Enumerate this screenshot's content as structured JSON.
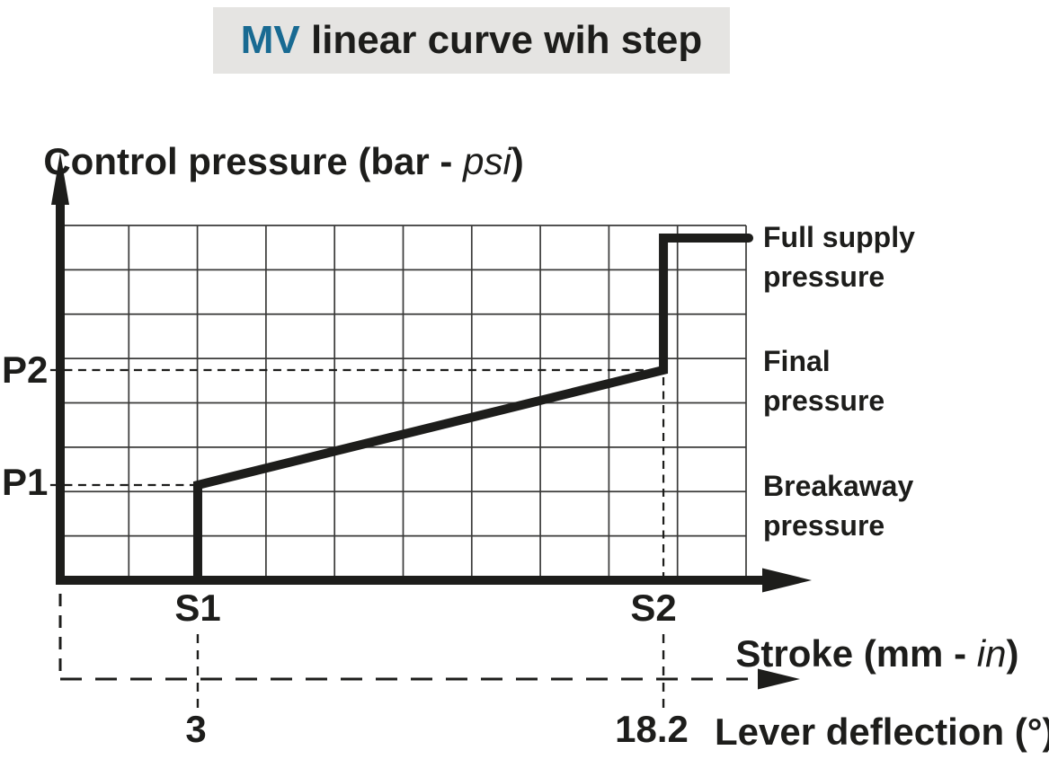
{
  "title": {
    "brand": "MV",
    "rest": " linear curve wih step"
  },
  "y_axis_label": {
    "prefix": "Control pressure (bar - ",
    "italic_unit": "psi",
    "suffix": ")"
  },
  "x_axis_label": {
    "prefix": "Stroke (mm - ",
    "italic_unit": "in",
    "suffix": ")"
  },
  "x2_axis_label": "Lever deflection (°)",
  "ticks": {
    "p2": "P2",
    "p1": "P1",
    "s1": "S1",
    "s2": "S2",
    "v1": "3",
    "v2": "18.2"
  },
  "annotations": {
    "full_supply": "Full supply pressure",
    "final": "Final pressure",
    "breakaway": "Breakaway pressure"
  },
  "colors": {
    "brand_blue": "#186a92",
    "ink": "#1d1d1b",
    "title_bg": "#e5e4e2",
    "grid": "#3a3a39"
  },
  "chart_data": {
    "type": "line",
    "title": "MV linear curve wih step",
    "xlabel": "Stroke (mm - in)",
    "ylabel": "Control pressure (bar - psi)",
    "x2label": "Lever deflection (°)",
    "grid": {
      "cols": 10,
      "rows": 8,
      "visible": true
    },
    "x_ticks": [
      {
        "label": "S1",
        "lever_deflection_deg": 3
      },
      {
        "label": "S2",
        "lever_deflection_deg": 18.2
      }
    ],
    "y_ticks": [
      {
        "label": "P1",
        "meaning": "Breakaway pressure"
      },
      {
        "label": "P2",
        "meaning": "Final pressure"
      }
    ],
    "legend_position": "right",
    "series": [
      {
        "name": "control pressure vs stroke",
        "description": "steps up to breakaway pressure P1 at stroke S1, rises linearly to final pressure P2 at S2, then steps to full supply pressure and stays constant",
        "points_frac": [
          [
            0.2005,
            0.0
          ],
          [
            0.2005,
            0.2684
          ],
          [
            0.8795,
            0.5924
          ],
          [
            0.8795,
            0.9646
          ],
          [
            1.004,
            0.9646
          ]
        ]
      }
    ],
    "guides_frac": [
      {
        "type": "h",
        "y": 0.5924,
        "x1": -0.0145,
        "x2": 0.8795,
        "label": "P2"
      },
      {
        "type": "h",
        "y": 0.2684,
        "x1": -0.0145,
        "x2": 0.2005,
        "label": "P1"
      },
      {
        "type": "v",
        "x": 0.8795,
        "y1": 0.0,
        "y2": 0.5924,
        "label": "S2"
      }
    ],
    "ticks_frac": {
      "s1": 0.2005,
      "s2": 0.8795
    },
    "annotations": [
      "Full supply pressure",
      "Final pressure",
      "Breakaway pressure"
    ]
  }
}
